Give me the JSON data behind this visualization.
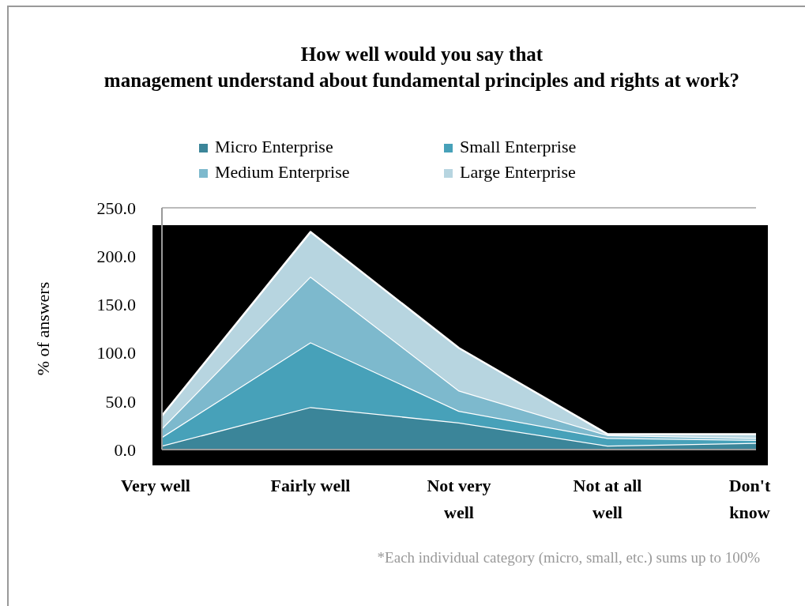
{
  "chart_data": {
    "type": "area",
    "stacked": true,
    "title": "How well would you say that management understand about fundamental principles and rights at work?",
    "ylabel": "% of answers",
    "categories": [
      "Very well",
      "Fairly well",
      "Not very well",
      "Not at all well",
      "Don't know"
    ],
    "series": [
      {
        "name": "Micro Enterprise",
        "color": "#3b8599",
        "values": [
          4,
          44,
          28,
          4,
          7
        ]
      },
      {
        "name": "Small Enterprise",
        "color": "#47a1b9",
        "values": [
          9,
          67,
          12,
          8,
          3
        ]
      },
      {
        "name": "Medium Enterprise",
        "color": "#7db9cd",
        "values": [
          9,
          68,
          21,
          3,
          2
        ]
      },
      {
        "name": "Large Enterprise",
        "color": "#b7d5e0",
        "values": [
          13,
          46,
          44,
          1,
          4
        ]
      }
    ],
    "ylim": [
      0,
      250
    ],
    "yticks": [
      {
        "value": 0,
        "label": "0.0"
      },
      {
        "value": 50,
        "label": "50.0"
      },
      {
        "value": 100,
        "label": "100.0"
      },
      {
        "value": 150,
        "label": "150.0"
      },
      {
        "value": 200,
        "label": "200.0"
      },
      {
        "value": 250,
        "label": "250.0"
      }
    ],
    "legend": "top",
    "grid": false,
    "annotations": [
      "*Each individual category (micro, small, etc.) sums up to 100%"
    ]
  }
}
